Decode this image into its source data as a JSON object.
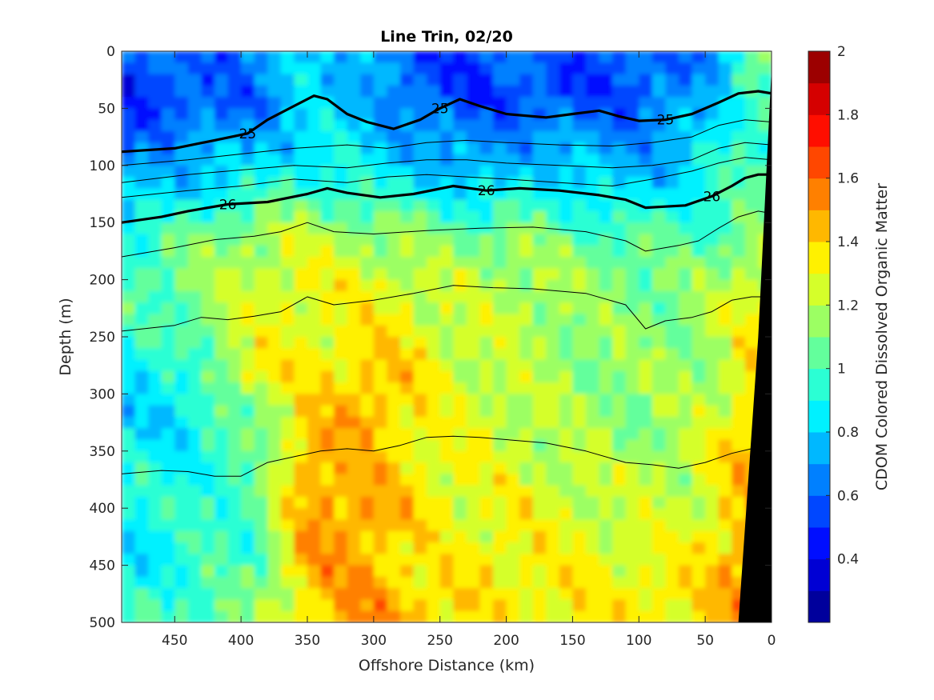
{
  "chart_data": {
    "type": "heatmap",
    "title": "Line Trin, 02/20",
    "xlabel": "Offshore Distance (km)",
    "ylabel": "Depth (m)",
    "xlim": [
      490,
      0
    ],
    "ylim": [
      0,
      500
    ],
    "x_reversed": true,
    "y_reversed": true,
    "x_ticks": [
      450,
      400,
      350,
      300,
      250,
      200,
      150,
      100,
      50,
      0
    ],
    "x_tick_labels": [
      "450",
      "400",
      "350",
      "300",
      "250",
      "200",
      "150",
      "100",
      "50",
      "0"
    ],
    "y_ticks": [
      0,
      50,
      100,
      150,
      200,
      250,
      300,
      350,
      400,
      450,
      500
    ],
    "y_tick_labels": [
      "0",
      "50",
      "100",
      "150",
      "200",
      "250",
      "300",
      "350",
      "400",
      "450",
      "500"
    ],
    "colorbar": {
      "label": "CDOM Colored Dissolved Organic Matter",
      "range": [
        0.2,
        2.0
      ],
      "ticks": [
        0.4,
        0.6,
        0.8,
        1.0,
        1.2,
        1.4,
        1.6,
        1.8,
        2.0
      ],
      "tick_labels": [
        "0.4",
        "0.6",
        "0.8",
        "1",
        "1.2",
        "1.4",
        "1.6",
        "1.8",
        "2"
      ],
      "colormap": "jet",
      "levels": 18
    },
    "field": {
      "x_km": [
        490,
        440,
        390,
        350,
        310,
        270,
        230,
        190,
        150,
        110,
        70,
        40,
        20,
        5
      ],
      "depth_m": [
        0,
        40,
        80,
        120,
        160,
        200,
        240,
        280,
        320,
        360,
        400,
        440,
        480,
        500
      ],
      "values": [
        [
          0.55,
          0.6,
          0.62,
          0.85,
          0.78,
          0.55,
          0.55,
          0.6,
          0.55,
          0.55,
          0.6,
          0.7,
          0.95,
          1.0
        ],
        [
          0.45,
          0.55,
          0.62,
          0.8,
          0.75,
          0.6,
          0.5,
          0.55,
          0.55,
          0.55,
          0.65,
          0.8,
          1.0,
          1.0
        ],
        [
          0.62,
          0.7,
          0.72,
          0.85,
          0.82,
          0.72,
          0.65,
          0.72,
          0.7,
          0.68,
          0.75,
          0.85,
          1.0,
          1.0
        ],
        [
          0.72,
          0.82,
          0.9,
          0.98,
          0.95,
          0.88,
          0.8,
          0.85,
          0.85,
          0.8,
          0.85,
          0.95,
          1.0,
          1.0
        ],
        [
          0.9,
          1.05,
          1.2,
          1.2,
          1.15,
          1.1,
          1.08,
          1.1,
          1.05,
          1.0,
          1.0,
          1.05,
          1.1,
          1.1
        ],
        [
          1.0,
          1.1,
          1.22,
          1.3,
          1.3,
          1.22,
          1.2,
          1.2,
          1.15,
          1.1,
          1.1,
          1.15,
          1.25,
          1.3
        ],
        [
          0.95,
          1.05,
          1.25,
          1.32,
          1.35,
          1.3,
          1.22,
          1.2,
          1.15,
          1.12,
          1.12,
          1.2,
          1.3,
          1.35
        ],
        [
          0.82,
          0.9,
          1.35,
          1.3,
          1.42,
          1.38,
          1.25,
          1.2,
          1.15,
          1.12,
          1.15,
          1.22,
          1.35,
          1.4
        ],
        [
          0.8,
          0.85,
          1.1,
          1.4,
          1.48,
          1.35,
          1.25,
          1.22,
          1.15,
          1.12,
          1.15,
          1.25,
          1.4,
          1.42
        ],
        [
          0.9,
          0.88,
          1.0,
          1.5,
          1.42,
          1.35,
          1.3,
          1.25,
          1.22,
          1.18,
          1.2,
          1.3,
          1.42,
          1.45
        ],
        [
          0.92,
          0.95,
          1.05,
          1.45,
          1.55,
          1.35,
          1.3,
          1.28,
          1.25,
          1.22,
          1.22,
          1.35,
          1.45,
          1.45
        ],
        [
          0.8,
          0.92,
          1.0,
          1.5,
          1.45,
          1.35,
          1.3,
          1.35,
          1.3,
          1.28,
          1.3,
          1.38,
          1.5,
          1.5
        ],
        [
          0.95,
          1.0,
          1.05,
          1.4,
          1.55,
          1.4,
          1.35,
          1.32,
          1.35,
          1.32,
          1.35,
          1.4,
          1.55,
          1.55
        ],
        [
          1.0,
          1.05,
          1.1,
          1.4,
          1.5,
          1.45,
          1.35,
          1.3,
          1.35,
          1.35,
          1.35,
          1.4,
          1.5,
          1.5
        ]
      ]
    },
    "contours": [
      {
        "level": "25",
        "bold": true,
        "labels": [
          "25",
          "25",
          "25"
        ],
        "points": [
          [
            490,
            88
          ],
          [
            450,
            85
          ],
          [
            420,
            78
          ],
          [
            395,
            72
          ],
          [
            380,
            60
          ],
          [
            360,
            48
          ],
          [
            345,
            39
          ],
          [
            335,
            42
          ],
          [
            320,
            55
          ],
          [
            305,
            62
          ],
          [
            285,
            68
          ],
          [
            265,
            60
          ],
          [
            250,
            50
          ],
          [
            235,
            42
          ],
          [
            220,
            48
          ],
          [
            200,
            55
          ],
          [
            170,
            58
          ],
          [
            150,
            55
          ],
          [
            130,
            52
          ],
          [
            115,
            57
          ],
          [
            100,
            61
          ],
          [
            80,
            60
          ],
          [
            60,
            55
          ],
          [
            40,
            45
          ],
          [
            25,
            37
          ],
          [
            10,
            35
          ],
          [
            0,
            37
          ]
        ]
      },
      {
        "level": "",
        "bold": false,
        "points": [
          [
            490,
            100
          ],
          [
            440,
            95
          ],
          [
            400,
            90
          ],
          [
            360,
            85
          ],
          [
            320,
            82
          ],
          [
            290,
            85
          ],
          [
            260,
            80
          ],
          [
            230,
            78
          ],
          [
            200,
            80
          ],
          [
            160,
            82
          ],
          [
            120,
            83
          ],
          [
            90,
            80
          ],
          [
            60,
            75
          ],
          [
            40,
            65
          ],
          [
            20,
            60
          ],
          [
            0,
            62
          ]
        ]
      },
      {
        "level": "",
        "bold": false,
        "points": [
          [
            490,
            115
          ],
          [
            440,
            108
          ],
          [
            400,
            104
          ],
          [
            360,
            100
          ],
          [
            320,
            102
          ],
          [
            290,
            98
          ],
          [
            260,
            95
          ],
          [
            230,
            95
          ],
          [
            200,
            98
          ],
          [
            160,
            100
          ],
          [
            120,
            102
          ],
          [
            90,
            100
          ],
          [
            60,
            95
          ],
          [
            40,
            85
          ],
          [
            20,
            80
          ],
          [
            0,
            82
          ]
        ]
      },
      {
        "level": "",
        "bold": false,
        "points": [
          [
            490,
            128
          ],
          [
            440,
            122
          ],
          [
            400,
            118
          ],
          [
            360,
            112
          ],
          [
            320,
            115
          ],
          [
            290,
            110
          ],
          [
            260,
            108
          ],
          [
            230,
            110
          ],
          [
            200,
            112
          ],
          [
            160,
            115
          ],
          [
            120,
            118
          ],
          [
            90,
            112
          ],
          [
            60,
            105
          ],
          [
            40,
            98
          ],
          [
            20,
            93
          ],
          [
            0,
            95
          ]
        ]
      },
      {
        "level": "26",
        "bold": true,
        "labels": [
          "26",
          "26",
          "26"
        ],
        "points": [
          [
            490,
            150
          ],
          [
            460,
            145
          ],
          [
            440,
            140
          ],
          [
            410,
            134
          ],
          [
            380,
            132
          ],
          [
            350,
            125
          ],
          [
            335,
            120
          ],
          [
            320,
            124
          ],
          [
            295,
            128
          ],
          [
            270,
            125
          ],
          [
            240,
            118
          ],
          [
            215,
            122
          ],
          [
            190,
            120
          ],
          [
            160,
            122
          ],
          [
            130,
            126
          ],
          [
            110,
            130
          ],
          [
            95,
            137
          ],
          [
            80,
            136
          ],
          [
            65,
            135
          ],
          [
            45,
            127
          ],
          [
            30,
            118
          ],
          [
            20,
            111
          ],
          [
            10,
            108
          ],
          [
            0,
            108
          ]
        ]
      },
      {
        "level": "",
        "bold": false,
        "points": [
          [
            490,
            180
          ],
          [
            450,
            172
          ],
          [
            420,
            165
          ],
          [
            390,
            162
          ],
          [
            370,
            158
          ],
          [
            350,
            150
          ],
          [
            330,
            158
          ],
          [
            300,
            160
          ],
          [
            260,
            157
          ],
          [
            220,
            155
          ],
          [
            180,
            154
          ],
          [
            140,
            158
          ],
          [
            110,
            166
          ],
          [
            95,
            175
          ],
          [
            70,
            170
          ],
          [
            55,
            166
          ],
          [
            40,
            155
          ],
          [
            25,
            145
          ],
          [
            10,
            140
          ],
          [
            0,
            142
          ]
        ]
      },
      {
        "level": "",
        "bold": false,
        "points": [
          [
            490,
            245
          ],
          [
            450,
            240
          ],
          [
            430,
            233
          ],
          [
            410,
            235
          ],
          [
            390,
            232
          ],
          [
            370,
            228
          ],
          [
            350,
            215
          ],
          [
            330,
            222
          ],
          [
            300,
            218
          ],
          [
            270,
            212
          ],
          [
            240,
            205
          ],
          [
            210,
            207
          ],
          [
            180,
            208
          ],
          [
            140,
            212
          ],
          [
            110,
            222
          ],
          [
            95,
            243
          ],
          [
            80,
            236
          ],
          [
            60,
            233
          ],
          [
            45,
            228
          ],
          [
            30,
            218
          ],
          [
            15,
            215
          ],
          [
            5,
            215
          ]
        ]
      },
      {
        "level": "",
        "bold": false,
        "points": [
          [
            490,
            370
          ],
          [
            460,
            367
          ],
          [
            440,
            368
          ],
          [
            420,
            372
          ],
          [
            400,
            372
          ],
          [
            380,
            360
          ],
          [
            360,
            355
          ],
          [
            340,
            350
          ],
          [
            320,
            348
          ],
          [
            300,
            350
          ],
          [
            280,
            345
          ],
          [
            260,
            338
          ],
          [
            240,
            337
          ],
          [
            220,
            338
          ],
          [
            200,
            340
          ],
          [
            170,
            343
          ],
          [
            140,
            350
          ],
          [
            110,
            360
          ],
          [
            90,
            362
          ],
          [
            70,
            365
          ],
          [
            50,
            360
          ],
          [
            30,
            352
          ],
          [
            15,
            348
          ],
          [
            5,
            345
          ]
        ]
      }
    ],
    "bathymetry": {
      "color": "#000000",
      "points": [
        [
          0,
          15
        ],
        [
          0,
          500
        ],
        [
          25,
          500
        ],
        [
          10,
          250
        ]
      ]
    }
  }
}
